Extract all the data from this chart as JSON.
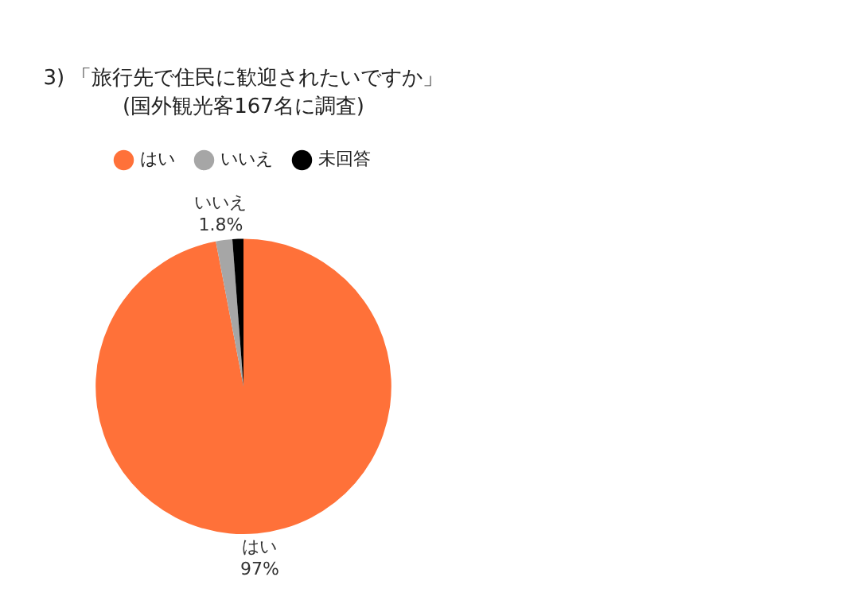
{
  "chart_data": {
    "type": "pie",
    "title": "3) 「旅行先で住民に歓迎されたいですか」",
    "subtitle": "(国外観光客167名に調査)",
    "categories": [
      "はい",
      "いいえ",
      "未回答"
    ],
    "values": [
      97,
      1.8,
      1.2
    ],
    "colors": [
      "#ff7139",
      "#a6a6a6",
      "#000000"
    ],
    "value_labels": [
      "97%",
      "1.8%",
      null
    ],
    "legend": "top"
  }
}
